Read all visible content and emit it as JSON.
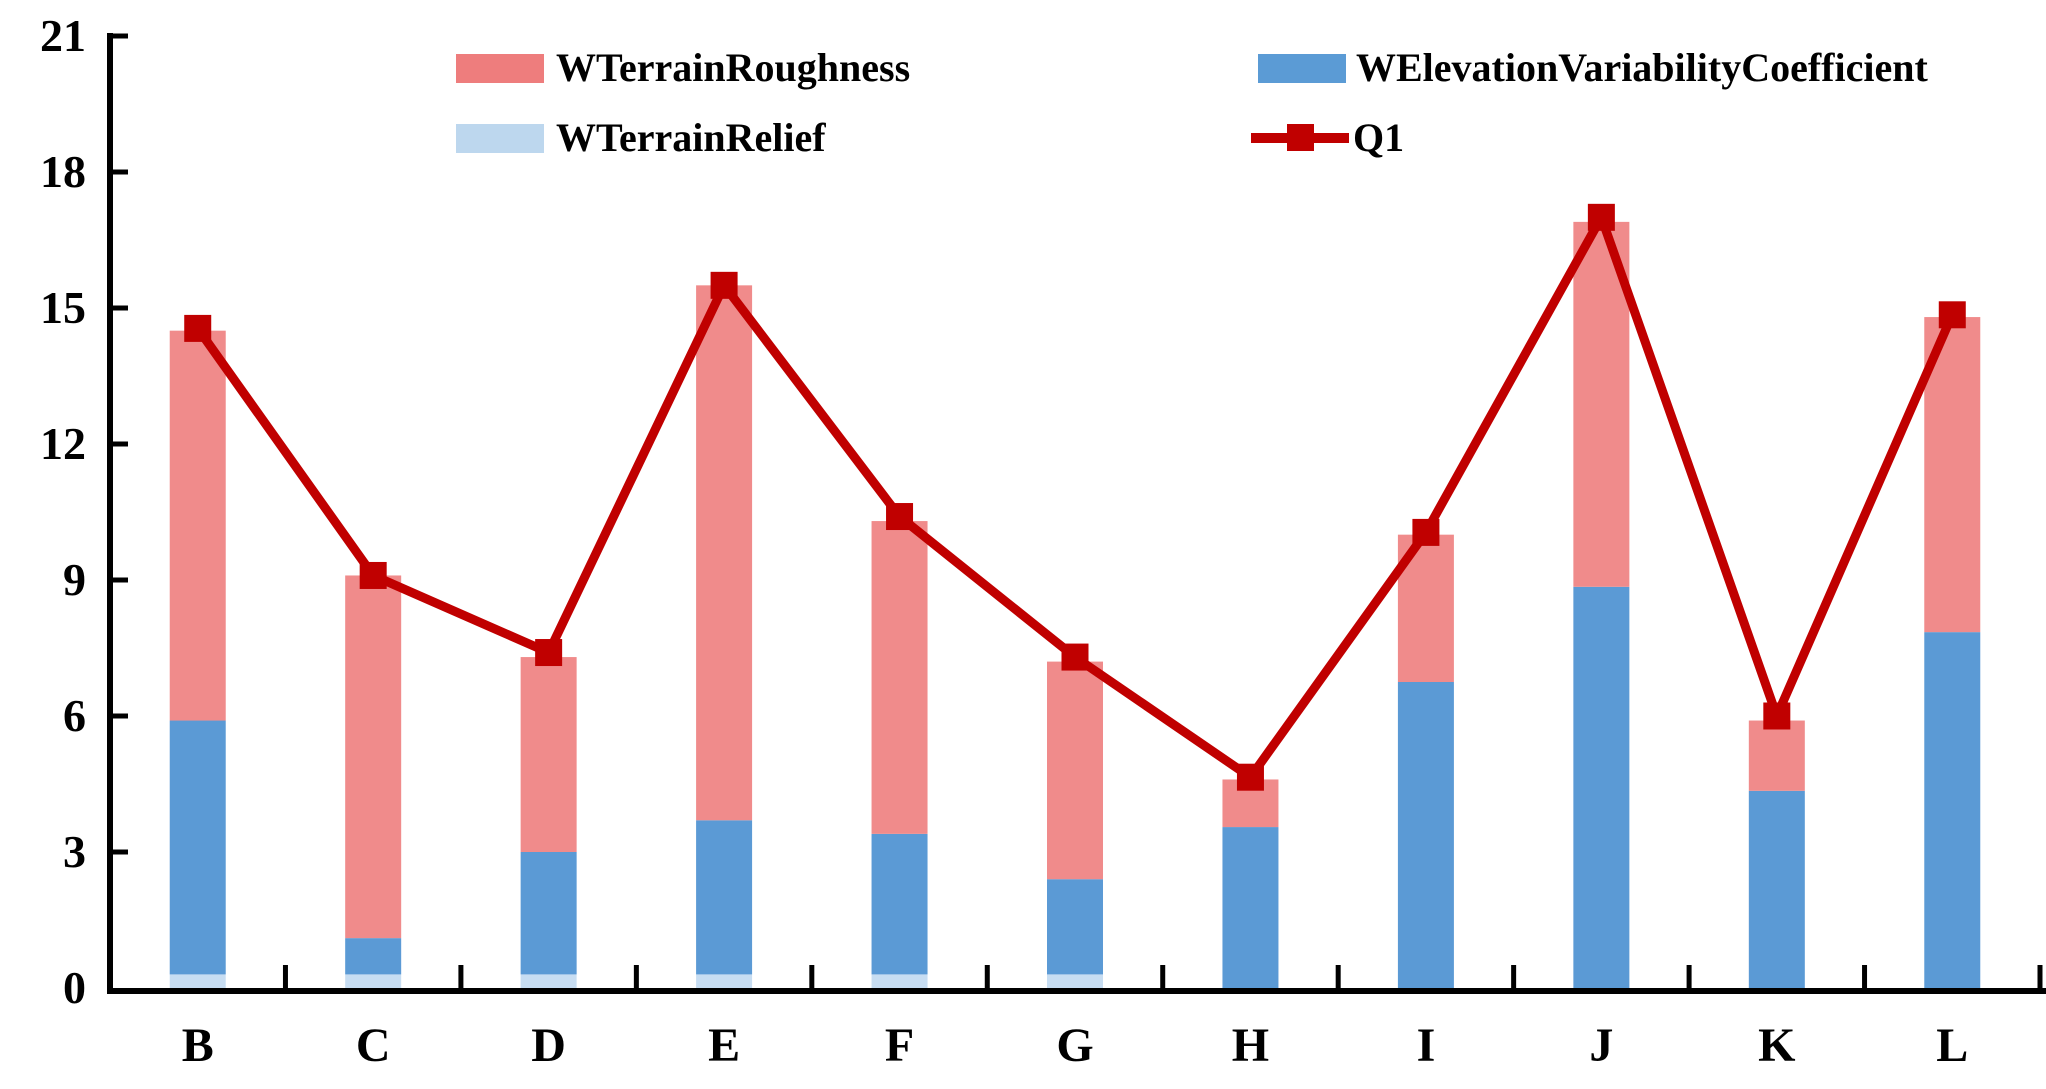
{
  "legend": {
    "items": [
      {
        "label": "WTerrainRoughness",
        "color": "#ee7d7d",
        "type": "swatch"
      },
      {
        "label": "WTerrainRelief",
        "color": "#bdd7ee",
        "type": "swatch"
      },
      {
        "label": "WElevationVariabilityCoefficient",
        "color": "#5b9bd5",
        "type": "swatch"
      },
      {
        "label": "Q1",
        "color": "#c00000",
        "type": "line-marker"
      }
    ]
  },
  "chart_data": {
    "type": "bar",
    "subtype": "stacked-bars-with-line-overlay",
    "categories": [
      "B",
      "C",
      "D",
      "E",
      "F",
      "G",
      "H",
      "I",
      "J",
      "K",
      "L"
    ],
    "series": [
      {
        "name": "WTerrainRelief",
        "kind": "bar",
        "color": "#c7ddf2",
        "values": [
          0.3,
          0.3,
          0.3,
          0.3,
          0.3,
          0.3,
          0,
          0,
          0,
          0,
          0
        ]
      },
      {
        "name": "WElevationVariabilityCoefficient",
        "kind": "bar",
        "color": "#5b9ad5",
        "values": [
          5.6,
          0.8,
          2.7,
          3.4,
          3.1,
          2.1,
          3.55,
          6.75,
          8.85,
          4.35,
          7.85
        ]
      },
      {
        "name": "WTerrainRoughness",
        "kind": "bar",
        "color": "#f08b8b",
        "values": [
          8.6,
          8.0,
          4.3,
          11.8,
          6.9,
          4.8,
          1.05,
          3.25,
          8.05,
          1.55,
          6.95
        ]
      },
      {
        "name": "Q1",
        "kind": "line",
        "color": "#c00000",
        "values": [
          14.55,
          9.1,
          7.4,
          15.5,
          10.4,
          7.3,
          4.65,
          10.05,
          17.0,
          6.0,
          14.85
        ]
      }
    ],
    "bar_totals": [
      14.5,
      9.1,
      7.3,
      15.5,
      10.3,
      7.2,
      4.6,
      10.0,
      16.9,
      5.9,
      14.8
    ],
    "title": "",
    "xlabel": "",
    "ylabel": "",
    "ylim": [
      0,
      21
    ],
    "yticks": [
      0,
      3,
      6,
      9,
      12,
      15,
      18,
      21
    ],
    "grid": false,
    "legend_position": "top",
    "axis_color": "#000000",
    "marker": "square"
  }
}
